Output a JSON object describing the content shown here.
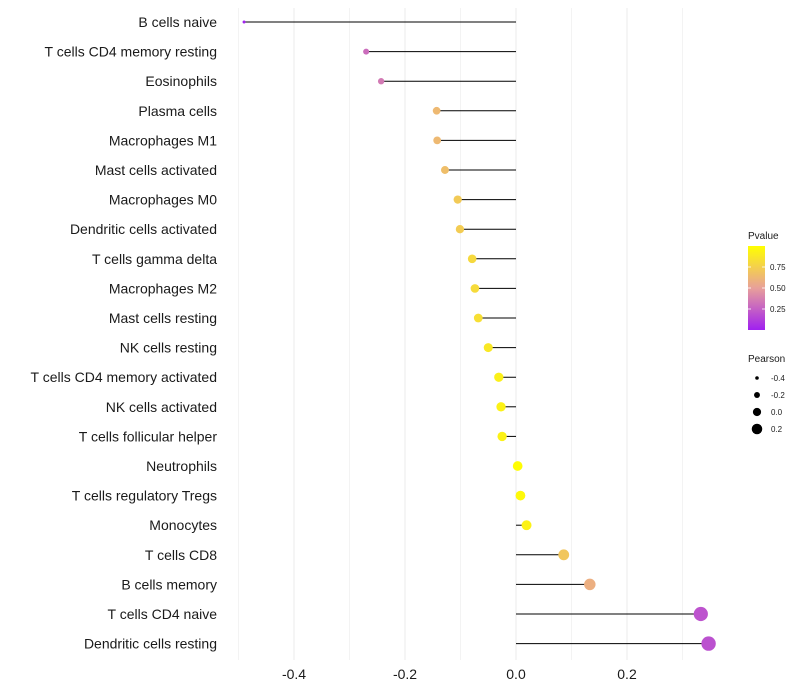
{
  "chart_data": {
    "type": "lollipop",
    "categories": [
      "B cells naive",
      "T cells CD4 memory resting",
      "Eosinophils",
      "Plasma cells",
      "Macrophages M1",
      "Mast cells activated",
      "Macrophages M0",
      "Dendritic cells activated",
      "T cells gamma delta",
      "Macrophages M2",
      "Mast cells resting",
      "NK cells resting",
      "T cells CD4 memory activated",
      "NK cells activated",
      "T cells follicular helper",
      "Neutrophils",
      "T cells regulatory  Tregs ",
      "Monocytes",
      "T cells CD8",
      "B cells memory",
      "T cells CD4 naive",
      "Dendritic cells resting"
    ],
    "pearson": [
      -0.49,
      -0.27,
      -0.243,
      -0.143,
      -0.142,
      -0.128,
      -0.105,
      -0.101,
      -0.079,
      -0.074,
      -0.068,
      -0.05,
      -0.031,
      -0.027,
      -0.025,
      0.003,
      0.008,
      0.019,
      0.086,
      0.133,
      0.333,
      0.347
    ],
    "pvalue": [
      0.01,
      0.3,
      0.35,
      0.63,
      0.63,
      0.66,
      0.72,
      0.73,
      0.8,
      0.81,
      0.83,
      0.88,
      0.92,
      0.93,
      0.93,
      0.99,
      0.97,
      0.93,
      0.7,
      0.58,
      0.2,
      0.19
    ],
    "xlim": [
      -0.5,
      0.4
    ],
    "x_ticks": [
      -0.4,
      -0.2,
      0.0,
      0.2
    ],
    "x_tick_labels": [
      "-0.4",
      "-0.2",
      "0.0",
      "0.2"
    ],
    "legend": {
      "color_title": "Pvalue",
      "color_ticks": [
        0.75,
        0.5,
        0.25
      ],
      "color_tick_labels": [
        "0.75",
        "0.50",
        "0.25"
      ],
      "color_range": [
        0.0,
        1.0
      ],
      "color_low": "#a020f0",
      "color_mid": "#e8a09a",
      "color_high": "#ffff00",
      "size_title": "Pearson",
      "size_values": [
        -0.4,
        -0.2,
        0.0,
        0.2
      ],
      "size_labels": [
        "-0.4",
        "-0.2",
        "0.0",
        "0.2"
      ]
    },
    "colors": {
      "stem": "#000000",
      "grid": "#ebebeb",
      "background": "#ffffff"
    }
  }
}
